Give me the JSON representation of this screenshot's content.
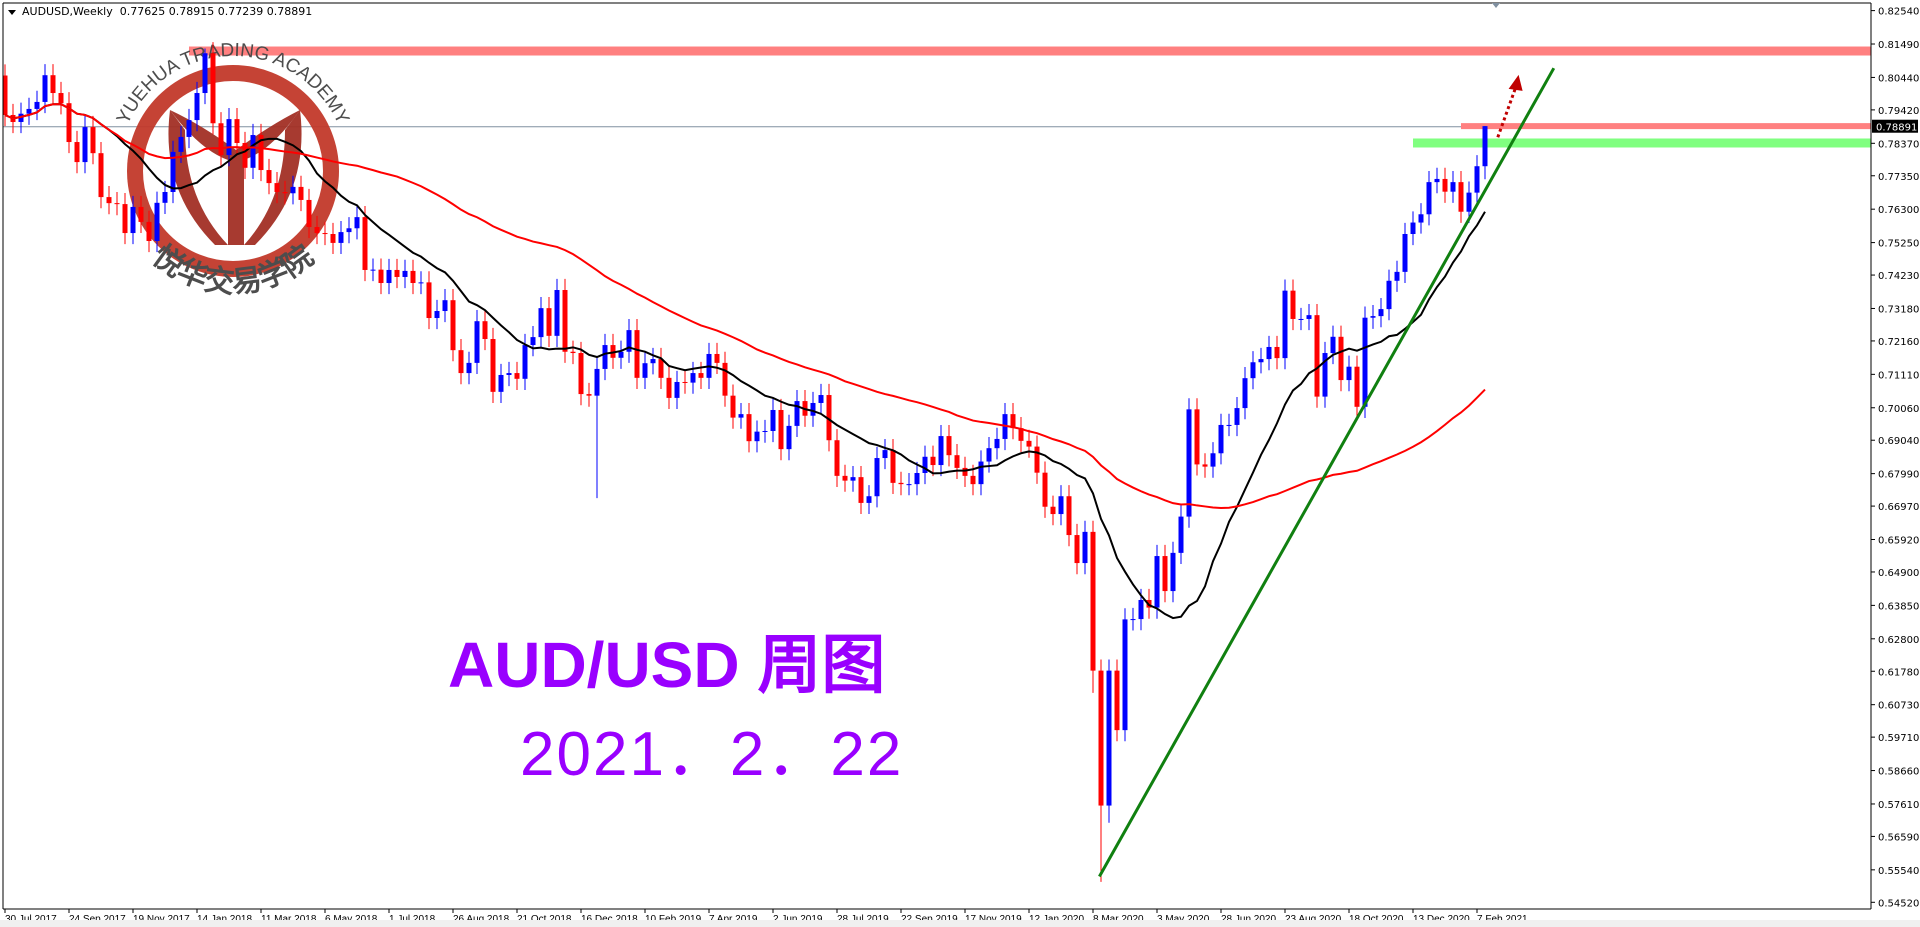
{
  "header": {
    "symbol": "AUDUSD,Weekly",
    "ohlc": "0.77625 0.78915 0.77239 0.78891"
  },
  "annotation": {
    "title": "AUD/USD 周图",
    "date": "2021．2．22"
  },
  "logo": {
    "text_en": "YUEHUA TRADING ACADEMY",
    "text_cn": "悦华交易学院",
    "color": "#a33025"
  },
  "colors": {
    "bull": "#0000ff",
    "bear": "#ff0000",
    "ma_fast": "#000000",
    "ma_slow": "#ff0000",
    "resistance": "#ff8080",
    "support": "#80ff80",
    "trendline": "#108010",
    "arrow": "#c00000",
    "annotation": "#9900ff"
  },
  "chart_data": {
    "type": "candlestick",
    "symbol": "AUDUSD",
    "timeframe": "Weekly",
    "ylim": [
      0.5452,
      0.8254
    ],
    "y_ticks": [
      "0.82540",
      "0.81490",
      "0.80440",
      "0.79420",
      "0.78370",
      "0.77350",
      "0.76300",
      "0.75250",
      "0.74230",
      "0.73180",
      "0.72160",
      "0.71110",
      "0.70060",
      "0.69040",
      "0.67990",
      "0.66970",
      "0.65920",
      "0.64900",
      "0.63850",
      "0.62800",
      "0.61780",
      "0.60730",
      "0.59710",
      "0.58660",
      "0.57610",
      "0.56590",
      "0.55540",
      "0.54520"
    ],
    "x_ticks": [
      "30 Jul 2017",
      "24 Sep 2017",
      "19 Nov 2017",
      "14 Jan 2018",
      "11 Mar 2018",
      "6 May 2018",
      "1 Jul 2018",
      "26 Aug 2018",
      "21 Oct 2018",
      "16 Dec 2018",
      "10 Feb 2019",
      "7 Apr 2019",
      "2 Jun 2019",
      "28 Jul 2019",
      "22 Sep 2019",
      "17 Nov 2019",
      "12 Jan 2020",
      "8 Mar 2020",
      "3 May 2020",
      "28 Jun 2020",
      "23 Aug 2020",
      "18 Oct 2020",
      "13 Dec 2020",
      "7 Feb 2021"
    ],
    "x_tick_every_weeks": 8,
    "first_week": "30 Jul 2017",
    "first_open": 0.805,
    "current_price": "0.78891",
    "closes": [
      0.7926,
      0.7904,
      0.793,
      0.7945,
      0.7967,
      0.8051,
      0.7995,
      0.7963,
      0.7841,
      0.7778,
      0.7888,
      0.7806,
      0.7668,
      0.7649,
      0.7646,
      0.7555,
      0.7637,
      0.759,
      0.753,
      0.765,
      0.7684,
      0.781,
      0.7857,
      0.791,
      0.7995,
      0.812,
      0.79,
      0.78,
      0.7913,
      0.7838,
      0.776,
      0.7863,
      0.7753,
      0.7712,
      0.7684,
      0.768,
      0.77,
      0.7659,
      0.7574,
      0.7555,
      0.7552,
      0.7524,
      0.7558,
      0.757,
      0.7605,
      0.7439,
      0.744,
      0.7398,
      0.7439,
      0.7417,
      0.7436,
      0.7398,
      0.74,
      0.7288,
      0.731,
      0.7344,
      0.7187,
      0.7115,
      0.7147,
      0.7278,
      0.7222,
      0.7056,
      0.7109,
      0.7115,
      0.7097,
      0.7203,
      0.7228,
      0.7319,
      0.7232,
      0.7376,
      0.7182,
      0.7178,
      0.7049,
      0.7044,
      0.7128,
      0.7203,
      0.7163,
      0.7182,
      0.725,
      0.71,
      0.7146,
      0.7159,
      0.71,
      0.7037,
      0.7087,
      0.7085,
      0.7115,
      0.71,
      0.7175,
      0.7147,
      0.7044,
      0.6975,
      0.6986,
      0.6901,
      0.6931,
      0.6933,
      0.6999,
      0.6876,
      0.6949,
      0.7027,
      0.6981,
      0.7021,
      0.7046,
      0.6904,
      0.6792,
      0.6777,
      0.6788,
      0.6707,
      0.6728,
      0.6848,
      0.6873,
      0.677,
      0.6766,
      0.6766,
      0.6801,
      0.6852,
      0.6826,
      0.6917,
      0.6857,
      0.6817,
      0.6792,
      0.6766,
      0.6837,
      0.6879,
      0.6908,
      0.6986,
      0.6942,
      0.6902,
      0.6884,
      0.6802,
      0.6695,
      0.6672,
      0.6728,
      0.6606,
      0.6518,
      0.6616,
      0.618,
      0.5756,
      0.618,
      0.5993,
      0.6341,
      0.6342,
      0.6402,
      0.6378,
      0.654,
      0.643,
      0.655,
      0.6664,
      0.7001,
      0.6828,
      0.6821,
      0.6863,
      0.6952,
      0.6952,
      0.7005,
      0.7099,
      0.7149,
      0.7159,
      0.7197,
      0.7162,
      0.7374,
      0.7285,
      0.7285,
      0.7297,
      0.7041,
      0.7178,
      0.7229,
      0.7093,
      0.7135,
      0.7009,
      0.7289,
      0.7294,
      0.7316,
      0.7405,
      0.7433,
      0.7552,
      0.7588,
      0.7614,
      0.7715,
      0.7725,
      0.7685,
      0.7715,
      0.7622,
      0.7682,
      0.7765,
      0.7891
    ],
    "extremes": [
      {
        "week": 25,
        "high": 0.8135
      },
      {
        "week": 74,
        "low": 0.6722
      },
      {
        "week": 136,
        "low": 0.611
      },
      {
        "week": 137,
        "low": 0.5516
      },
      {
        "week": 138,
        "low": 0.5702
      },
      {
        "week": 185,
        "high": 0.78915,
        "low": 0.77239
      }
    ],
    "moving_averages": [
      {
        "period": 14,
        "color": "#000000"
      },
      {
        "period": 50,
        "color": "#ff0000"
      }
    ],
    "levels": [
      {
        "name": "resistance-high",
        "price": 0.8127,
        "from_week": 23,
        "color": "#ff8080"
      },
      {
        "name": "resistance-current",
        "price": 0.7891,
        "from_week": 182,
        "color": "#ff8080"
      },
      {
        "name": "support",
        "price": 0.7838,
        "from_week": 176,
        "color": "#80ff80"
      }
    ],
    "trendline": {
      "from": {
        "week": 136.8,
        "price": 0.5533
      },
      "to": {
        "week": 193.6,
        "price": 0.8073
      }
    },
    "arrow": {
      "from": {
        "week": 186.6,
        "price": 0.7856
      },
      "to": {
        "week": 189.2,
        "price": 0.8052
      }
    }
  }
}
